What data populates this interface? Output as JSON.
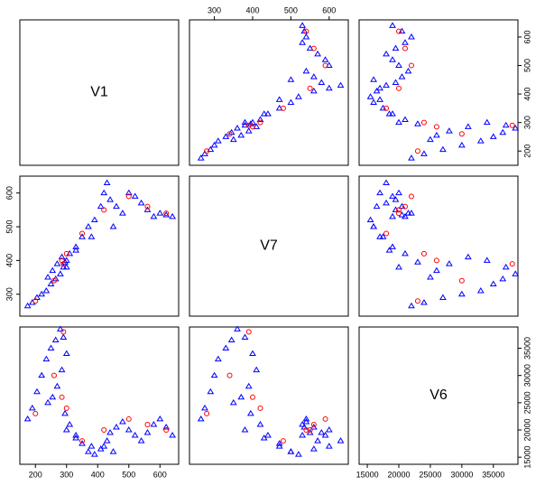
{
  "chart_data": {
    "type": "scatter-matrix",
    "variables": [
      "V1",
      "V7",
      "V6"
    ],
    "lims": [
      [
        150,
        660
      ],
      [
        235,
        650
      ],
      [
        13700,
        38900
      ]
    ],
    "ticks": [
      [
        200,
        300,
        400,
        500,
        600
      ],
      [
        300,
        400,
        500,
        600
      ],
      [
        15000,
        20000,
        25000,
        30000,
        35000
      ]
    ],
    "series": [
      {
        "color": "#0000ff",
        "marker": "triangle",
        "values": [
          [
            175,
            265,
            22000
          ],
          [
            190,
            275,
            24000
          ],
          [
            205,
            290,
            27000
          ],
          [
            220,
            300,
            30000
          ],
          [
            235,
            310,
            33000
          ],
          [
            250,
            330,
            35000
          ],
          [
            265,
            345,
            36500
          ],
          [
            280,
            360,
            38500
          ],
          [
            290,
            380,
            37000
          ],
          [
            300,
            400,
            34000
          ],
          [
            285,
            410,
            31000
          ],
          [
            270,
            390,
            28000
          ],
          [
            255,
            370,
            26000
          ],
          [
            240,
            350,
            25000
          ],
          [
            295,
            395,
            23000
          ],
          [
            310,
            420,
            21000
          ],
          [
            330,
            440,
            19000
          ],
          [
            350,
            470,
            17500
          ],
          [
            370,
            500,
            16000
          ],
          [
            390,
            520,
            15500
          ],
          [
            410,
            560,
            16500
          ],
          [
            420,
            600,
            17000
          ],
          [
            430,
            630,
            18000
          ],
          [
            440,
            580,
            19500
          ],
          [
            460,
            560,
            20500
          ],
          [
            480,
            540,
            21500
          ],
          [
            500,
            600,
            20000
          ],
          [
            520,
            590,
            19000
          ],
          [
            540,
            570,
            18000
          ],
          [
            560,
            550,
            19500
          ],
          [
            580,
            530,
            21000
          ],
          [
            600,
            540,
            22000
          ],
          [
            620,
            535,
            20500
          ],
          [
            640,
            530,
            19000
          ],
          [
            450,
            500,
            16000
          ],
          [
            380,
            470,
            17000
          ],
          [
            330,
            430,
            18500
          ],
          [
            300,
            380,
            20000
          ]
        ]
      },
      {
        "color": "#ff0000",
        "marker": "circle",
        "values": [
          [
            285,
            400,
            26000
          ],
          [
            300,
            420,
            24000
          ],
          [
            260,
            340,
            30000
          ],
          [
            420,
            550,
            20000
          ],
          [
            560,
            560,
            21000
          ],
          [
            620,
            540,
            20000
          ],
          [
            200,
            280,
            23000
          ],
          [
            500,
            590,
            22000
          ],
          [
            290,
            390,
            38000
          ],
          [
            350,
            480,
            18000
          ]
        ]
      }
    ]
  }
}
